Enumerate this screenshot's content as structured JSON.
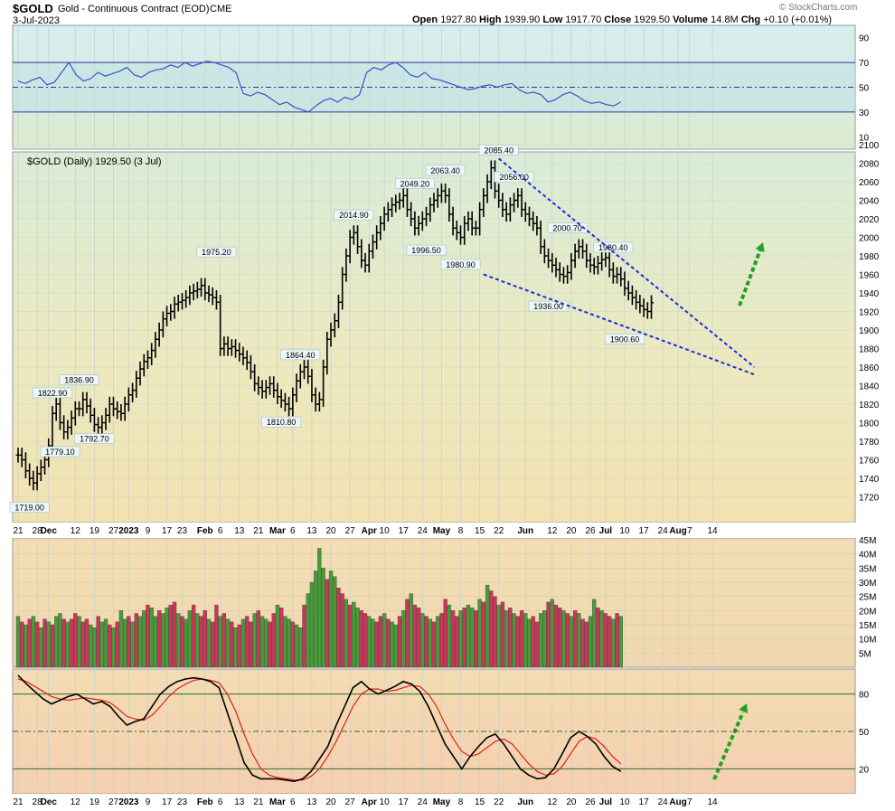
{
  "header": {
    "symbol": "$GOLD",
    "description": "Gold - Continuous Contract (EOD)",
    "exchange": "CME",
    "date": "3-Jul-2023",
    "watermark": "© StockCharts.com",
    "quote_labels": {
      "open": "Open",
      "high": "High",
      "low": "Low",
      "close": "Close",
      "volume": "Volume",
      "chg": "Chg"
    },
    "quote_values": {
      "open": "1927.80",
      "high": "1939.90",
      "low": "1917.70",
      "close": "1929.50",
      "volume": "14.8M",
      "chg": "+0.10 (+0.01%)"
    }
  },
  "colors": {
    "price_bar": "#000000",
    "volume_up": "#4a9a3a",
    "volume_down": "#c8375a",
    "rsi_line": "#3a53c9",
    "stoch_k": "#000000",
    "stoch_d": "#e0201a",
    "trendline": "#1a2fd9",
    "arrow": "#1fa322"
  },
  "chart_data": [
    {
      "type": "line",
      "panel": "rsi",
      "yticks": [
        90,
        70,
        50,
        30,
        10
      ],
      "ylim": [
        0,
        100
      ],
      "reference_lines": [
        70,
        50,
        30
      ],
      "series": [
        {
          "values": [
            55,
            53,
            56,
            58,
            52,
            54,
            62,
            70,
            60,
            55,
            57,
            62,
            59,
            61,
            63,
            66,
            60,
            58,
            62,
            64,
            65,
            68,
            66,
            70,
            67,
            69,
            71,
            70,
            68,
            66,
            62,
            45,
            43,
            46,
            44,
            40,
            36,
            38,
            34,
            32,
            30,
            35,
            39,
            41,
            38,
            42,
            40,
            44,
            62,
            66,
            64,
            68,
            70,
            66,
            60,
            58,
            62,
            57,
            56,
            54,
            52,
            50,
            48,
            49,
            51,
            52,
            50,
            52,
            53,
            48,
            45,
            46,
            44,
            38,
            40,
            44,
            46,
            43,
            39,
            37,
            38,
            36,
            35,
            38
          ]
        }
      ]
    },
    {
      "type": "bar",
      "panel": "price",
      "title": "$GOLD (Daily) 1929.50 (3 Jul)",
      "ylim": [
        1700,
        2100
      ],
      "yticks": [
        2100,
        2080,
        2060,
        2040,
        2020,
        2000,
        1980,
        1960,
        1940,
        1920,
        1900,
        1880,
        1860,
        1840,
        1820,
        1800,
        1780,
        1760,
        1740,
        1720
      ],
      "closes": [
        1765,
        1760,
        1748,
        1740,
        1735,
        1745,
        1752,
        1760,
        1775,
        1810,
        1820,
        1800,
        1790,
        1795,
        1805,
        1815,
        1815,
        1825,
        1818,
        1808,
        1798,
        1795,
        1800,
        1808,
        1820,
        1815,
        1812,
        1810,
        1820,
        1830,
        1835,
        1848,
        1858,
        1866,
        1870,
        1878,
        1890,
        1900,
        1912,
        1918,
        1920,
        1928,
        1930,
        1932,
        1935,
        1940,
        1942,
        1944,
        1948,
        1940,
        1938,
        1935,
        1930,
        1880,
        1885,
        1880,
        1882,
        1878,
        1874,
        1870,
        1865,
        1855,
        1842,
        1838,
        1834,
        1838,
        1842,
        1835,
        1828,
        1824,
        1820,
        1815,
        1830,
        1845,
        1855,
        1860,
        1850,
        1830,
        1820,
        1825,
        1860,
        1890,
        1900,
        1910,
        1930,
        1960,
        1980,
        2000,
        2005,
        1990,
        1975,
        1970,
        1985,
        1995,
        2005,
        2015,
        2025,
        2030,
        2035,
        2038,
        2040,
        2045,
        2030,
        2020,
        2010,
        2015,
        2020,
        2025,
        2035,
        2040,
        2045,
        2050,
        2045,
        2025,
        2010,
        2005,
        2000,
        2015,
        2020,
        2010,
        2010,
        2030,
        2045,
        2060,
        2075,
        2050,
        2040,
        2030,
        2025,
        2035,
        2040,
        2045,
        2030,
        2025,
        2020,
        2015,
        2010,
        1990,
        1980,
        1975,
        1970,
        1965,
        1960,
        1958,
        1962,
        1975,
        1985,
        1990,
        1985,
        1975,
        1970,
        1968,
        1972,
        1976,
        1978,
        1965,
        1958,
        1960,
        1955,
        1945,
        1940,
        1935,
        1930,
        1926,
        1922,
        1920,
        1929.5
      ],
      "annotations": [
        {
          "label": "1719.00",
          "x_index": 3,
          "value": 1719
        },
        {
          "label": "1822.90",
          "x_index": 9,
          "value": 1823
        },
        {
          "label": "1779.10",
          "x_index": 11,
          "value": 1779
        },
        {
          "label": "1836.90",
          "x_index": 16,
          "value": 1837
        },
        {
          "label": "1792.70",
          "x_index": 20,
          "value": 1793
        },
        {
          "label": "1975.20",
          "x_index": 52,
          "value": 1975
        },
        {
          "label": "1864.40",
          "x_index": 74,
          "value": 1864
        },
        {
          "label": "1810.80",
          "x_index": 69,
          "value": 1811
        },
        {
          "label": "2014.90",
          "x_index": 88,
          "value": 2015
        },
        {
          "label": "2049.20",
          "x_index": 104,
          "value": 2049
        },
        {
          "label": "1996.50",
          "x_index": 107,
          "value": 1996.5
        },
        {
          "label": "2063.40",
          "x_index": 112,
          "value": 2063
        },
        {
          "label": "1980.90",
          "x_index": 116,
          "value": 1981
        },
        {
          "label": "2085.40",
          "x_index": 126,
          "value": 2085
        },
        {
          "label": "2056.00",
          "x_index": 130,
          "value": 2056
        },
        {
          "label": "2000.70",
          "x_index": 144,
          "value": 2001
        },
        {
          "label": "1936.00",
          "x_index": 139,
          "value": 1936
        },
        {
          "label": "1980.40",
          "x_index": 156,
          "value": 1980
        },
        {
          "label": "1900.60",
          "x_index": 159,
          "value": 1900.6
        }
      ],
      "trendlines": [
        {
          "from": [
            126,
            2085
          ],
          "to": [
            193,
            1860
          ]
        },
        {
          "from": [
            122,
            1960
          ],
          "to": [
            193,
            1852
          ]
        }
      ]
    },
    {
      "type": "bar",
      "panel": "volume",
      "ylim": [
        0,
        45
      ],
      "yticks": [
        "45M",
        "40M",
        "35M",
        "30M",
        "25M",
        "20M",
        "15M",
        "10M",
        "5M"
      ],
      "yticks_values": [
        45,
        40,
        35,
        30,
        25,
        20,
        15,
        10,
        5
      ],
      "values": [
        18,
        16,
        15,
        17,
        18,
        16,
        14,
        17,
        16,
        15,
        18,
        19,
        17,
        16,
        17,
        19,
        18,
        16,
        17,
        15,
        14,
        18,
        16,
        17,
        15,
        14,
        16,
        20,
        17,
        18,
        16,
        19,
        18,
        20,
        22,
        21,
        18,
        20,
        19,
        21,
        22,
        23,
        19,
        18,
        17,
        20,
        22,
        19,
        18,
        20,
        17,
        16,
        22,
        18,
        19,
        17,
        16,
        14,
        15,
        17,
        18,
        16,
        19,
        20,
        18,
        17,
        16,
        19,
        22,
        21,
        18,
        17,
        16,
        15,
        14,
        22,
        26,
        30,
        34,
        42,
        35,
        31,
        34,
        32,
        28,
        26,
        24,
        22,
        23,
        21,
        20,
        19,
        18,
        17,
        16,
        18,
        19,
        17,
        16,
        15,
        18,
        20,
        24,
        26,
        22,
        21,
        19,
        18,
        17,
        16,
        18,
        19,
        24,
        22,
        20,
        18,
        20,
        21,
        22,
        21,
        20,
        24,
        23,
        29,
        27,
        25,
        22,
        23,
        20,
        21,
        19,
        18,
        20,
        19,
        17,
        18,
        16,
        19,
        20,
        23,
        24,
        22,
        21,
        20,
        19,
        18,
        20,
        19,
        17,
        16,
        18,
        24,
        21,
        20,
        19,
        18,
        17,
        19,
        18
      ],
      "up": [
        true,
        false,
        true,
        false,
        true,
        false,
        true,
        false,
        true,
        false,
        true,
        true,
        false,
        true,
        false,
        false,
        true,
        false,
        false,
        true,
        true,
        false,
        true,
        true,
        false,
        true,
        false,
        true,
        true,
        false,
        true,
        false,
        true,
        true,
        false,
        true,
        true,
        false,
        true,
        true,
        false,
        false,
        true,
        false,
        true,
        true,
        false,
        true,
        false,
        false,
        true,
        false,
        false,
        true,
        false,
        true,
        false,
        true,
        false,
        true,
        false,
        false,
        true,
        false,
        true,
        true,
        false,
        false,
        true,
        false,
        true,
        true,
        false,
        true,
        true,
        false,
        true,
        true,
        true,
        true,
        true,
        false,
        true,
        true,
        false,
        false,
        true,
        false,
        true,
        true,
        false,
        false,
        true,
        true,
        false,
        false,
        true,
        false,
        true,
        true,
        false,
        true,
        false,
        true,
        false,
        false,
        true,
        false,
        true,
        false,
        true,
        false,
        false,
        true,
        false,
        false,
        true,
        false,
        true,
        true,
        false,
        true,
        false,
        true,
        false,
        false,
        true,
        false,
        true,
        false,
        true,
        false,
        false,
        true,
        true,
        false,
        false,
        true,
        true,
        false,
        true,
        false,
        false,
        true,
        false,
        true,
        false,
        true,
        false,
        false,
        true,
        true,
        false,
        true,
        false,
        false,
        true,
        false,
        true
      ]
    },
    {
      "type": "line",
      "panel": "stochastic",
      "yticks": [
        80,
        50,
        20
      ],
      "ylim": [
        0,
        100
      ],
      "reference_lines": [
        80,
        50,
        20
      ],
      "series": [
        {
          "values": [
            95,
            88,
            82,
            76,
            72,
            75,
            78,
            80,
            76,
            72,
            74,
            70,
            62,
            55,
            58,
            60,
            70,
            80,
            86,
            90,
            92,
            93,
            92,
            90,
            85,
            65,
            45,
            25,
            15,
            12,
            12,
            12,
            11,
            10,
            12,
            18,
            28,
            38,
            55,
            70,
            85,
            90,
            84,
            80,
            83,
            86,
            90,
            88,
            82,
            70,
            55,
            40,
            30,
            20,
            30,
            38,
            45,
            48,
            40,
            30,
            20,
            15,
            12,
            13,
            20,
            32,
            45,
            50,
            46,
            40,
            30,
            22,
            18
          ]
        },
        {
          "values": [
            92,
            90,
            86,
            82,
            78,
            76,
            75,
            76,
            77,
            76,
            75,
            73,
            68,
            62,
            60,
            59,
            63,
            70,
            78,
            84,
            88,
            91,
            92,
            91,
            89,
            80,
            66,
            48,
            32,
            20,
            15,
            13,
            12,
            11,
            11,
            14,
            20,
            30,
            42,
            56,
            70,
            80,
            84,
            84,
            82,
            83,
            85,
            87,
            86,
            80,
            70,
            56,
            44,
            34,
            30,
            32,
            37,
            42,
            44,
            40,
            32,
            24,
            18,
            15,
            16,
            22,
            32,
            42,
            46,
            44,
            38,
            30,
            24
          ]
        }
      ]
    }
  ],
  "x_axis": {
    "labels": [
      {
        "text": "21",
        "bold": false,
        "idx": 0
      },
      {
        "text": "28",
        "bold": false,
        "idx": 5
      },
      {
        "text": "Dec",
        "bold": true,
        "idx": 8
      },
      {
        "text": "12",
        "bold": false,
        "idx": 15
      },
      {
        "text": "19",
        "bold": false,
        "idx": 20
      },
      {
        "text": "27",
        "bold": false,
        "idx": 25
      },
      {
        "text": "2023",
        "bold": true,
        "idx": 29
      },
      {
        "text": "9",
        "bold": false,
        "idx": 34
      },
      {
        "text": "17",
        "bold": false,
        "idx": 39
      },
      {
        "text": "23",
        "bold": false,
        "idx": 43
      },
      {
        "text": "Feb",
        "bold": true,
        "idx": 49
      },
      {
        "text": "6",
        "bold": false,
        "idx": 53
      },
      {
        "text": "13",
        "bold": false,
        "idx": 58
      },
      {
        "text": "21",
        "bold": false,
        "idx": 63
      },
      {
        "text": "Mar",
        "bold": true,
        "idx": 68
      },
      {
        "text": "6",
        "bold": false,
        "idx": 72
      },
      {
        "text": "13",
        "bold": false,
        "idx": 77
      },
      {
        "text": "20",
        "bold": false,
        "idx": 82
      },
      {
        "text": "27",
        "bold": false,
        "idx": 87
      },
      {
        "text": "Apr",
        "bold": true,
        "idx": 92
      },
      {
        "text": "10",
        "bold": false,
        "idx": 96
      },
      {
        "text": "17",
        "bold": false,
        "idx": 101
      },
      {
        "text": "24",
        "bold": false,
        "idx": 106
      },
      {
        "text": "May",
        "bold": true,
        "idx": 111
      },
      {
        "text": "8",
        "bold": false,
        "idx": 116
      },
      {
        "text": "15",
        "bold": false,
        "idx": 121
      },
      {
        "text": "22",
        "bold": false,
        "idx": 126
      },
      {
        "text": "Jun",
        "bold": true,
        "idx": 133
      },
      {
        "text": "12",
        "bold": false,
        "idx": 140
      },
      {
        "text": "20",
        "bold": false,
        "idx": 145
      },
      {
        "text": "26",
        "bold": false,
        "idx": 150
      },
      {
        "text": "Jul",
        "bold": true,
        "idx": 154
      },
      {
        "text": "10",
        "bold": false,
        "idx": 159
      },
      {
        "text": "17",
        "bold": false,
        "idx": 164
      },
      {
        "text": "24",
        "bold": false,
        "idx": 169
      },
      {
        "text": "Aug",
        "bold": true,
        "idx": 173
      },
      {
        "text": "7",
        "bold": false,
        "idx": 176
      },
      {
        "text": "14",
        "bold": false,
        "idx": 182
      }
    ]
  }
}
